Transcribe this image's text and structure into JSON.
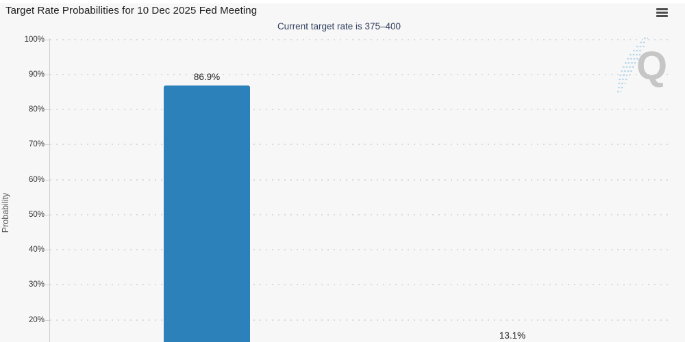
{
  "header": {
    "title": "Target Rate Probabilities for 10 Dec 2025 Fed Meeting"
  },
  "chart": {
    "subtitle": "Current target rate is 375–400",
    "y_axis_title": "Probability",
    "watermark_letter": "Q"
  },
  "icons": {
    "menu": "hamburger-menu-icon"
  },
  "colors": {
    "background": "#f7f7f7",
    "bar": "#2c81ba",
    "subtitle_text": "#32415f",
    "gridline": "#dadada",
    "axis_line": "#cfcfcf",
    "watermark_gray": "#c6c6c6",
    "watermark_blue": "#b9d8eb"
  },
  "chart_data": {
    "type": "bar",
    "title": "Target Rate Probabilities for 10 Dec 2025 Fed Meeting",
    "subtitle": "Current target rate is 375–400",
    "ylabel": "Probability",
    "ylim": [
      0,
      100
    ],
    "ytick_step": 10,
    "yticks": [
      100,
      90,
      80,
      70,
      60,
      50,
      40,
      30,
      20
    ],
    "ytick_labels": [
      "100%",
      "90%",
      "80%",
      "70%",
      "60%",
      "50%",
      "40%",
      "30%",
      "20%"
    ],
    "grid": "dotted-horizontal",
    "legend": "none",
    "categories": [
      "",
      ""
    ],
    "values": [
      86.9,
      13.1
    ],
    "data_labels": [
      "86.9%",
      "13.1%"
    ],
    "bar_color": "#2c81ba",
    "note_axis_crop": ""
  }
}
